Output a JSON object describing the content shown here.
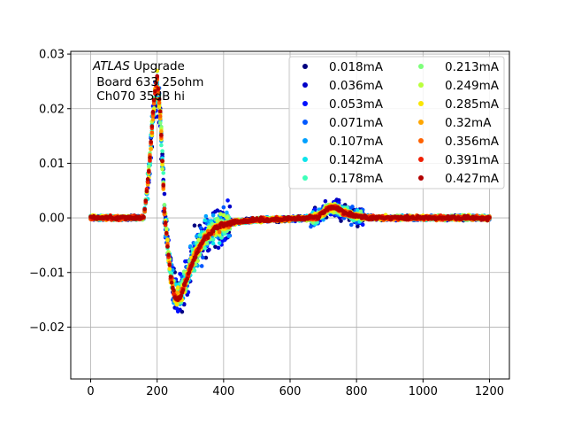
{
  "chart_data": {
    "type": "scatter",
    "title": "",
    "xlabel": "",
    "ylabel": "",
    "xlim": [
      -60,
      1260
    ],
    "ylim": [
      -0.0295,
      0.0305
    ],
    "grid": true,
    "legend_placement": "top-right",
    "legend_columns": 2,
    "annotation": {
      "italic_word": "ATLAS",
      "line1_rest": " Upgrade",
      "line2": " Board 633 25ohm",
      "line3": " Ch070 35dB hi"
    },
    "x_ticks": [
      0,
      200,
      400,
      600,
      800,
      1000,
      1200
    ],
    "x_tick_labels": [
      "0",
      "200",
      "400",
      "600",
      "800",
      "1000",
      "1200"
    ],
    "y_ticks": [
      -0.02,
      -0.01,
      0.0,
      0.01,
      0.02,
      0.03
    ],
    "y_tick_labels": [
      "−0.02",
      "−0.01",
      "0.00",
      "0.01",
      "0.02",
      "0.03"
    ],
    "series": [
      {
        "name": "0.018mA",
        "color": "#00007f",
        "values_scale": 0.018
      },
      {
        "name": "0.036mA",
        "color": "#0000c8",
        "values_scale": 0.036
      },
      {
        "name": "0.053mA",
        "color": "#0010ff",
        "values_scale": 0.053
      },
      {
        "name": "0.071mA",
        "color": "#0058ff",
        "values_scale": 0.071
      },
      {
        "name": "0.107mA",
        "color": "#00a0ff",
        "values_scale": 0.107
      },
      {
        "name": "0.142mA",
        "color": "#0ce4eb",
        "values_scale": 0.142
      },
      {
        "name": "0.178mA",
        "color": "#3dffb9",
        "values_scale": 0.178
      },
      {
        "name": "0.213mA",
        "color": "#7dff7a",
        "values_scale": 0.213
      },
      {
        "name": "0.249mA",
        "color": "#baff3c",
        "values_scale": 0.249
      },
      {
        "name": "0.285mA",
        "color": "#fae600",
        "values_scale": 0.285
      },
      {
        "name": "0.32mA",
        "color": "#ffa600",
        "values_scale": 0.32
      },
      {
        "name": "0.356mA",
        "color": "#ff6200",
        "values_scale": 0.356
      },
      {
        "name": "0.391mA",
        "color": "#f11e00",
        "values_scale": 0.391
      },
      {
        "name": "0.427mA",
        "color": "#b20000",
        "values_scale": 0.427
      }
    ],
    "pulse_shape": {
      "x": [
        0,
        160,
        175,
        190,
        200,
        210,
        222,
        240,
        255,
        270,
        290,
        310,
        340,
        380,
        430,
        500,
        600,
        680,
        700,
        720,
        740,
        760,
        790,
        820,
        860,
        1000,
        1200
      ],
      "y": [
        0.0,
        0.0,
        0.0085,
        0.0215,
        0.026,
        0.019,
        0.001,
        -0.0105,
        -0.015,
        -0.0145,
        -0.011,
        -0.0075,
        -0.004,
        -0.0016,
        -0.0008,
        -0.0004,
        -0.0002,
        0.0,
        0.0011,
        0.002,
        0.0018,
        0.0011,
        0.0004,
        0.0001,
        0.0,
        0.0,
        0.0
      ]
    },
    "point_spacing_x": 3.125,
    "noise_amplitude": 0.00055,
    "point_colors_order": "low-to-high current drawn first to last"
  }
}
